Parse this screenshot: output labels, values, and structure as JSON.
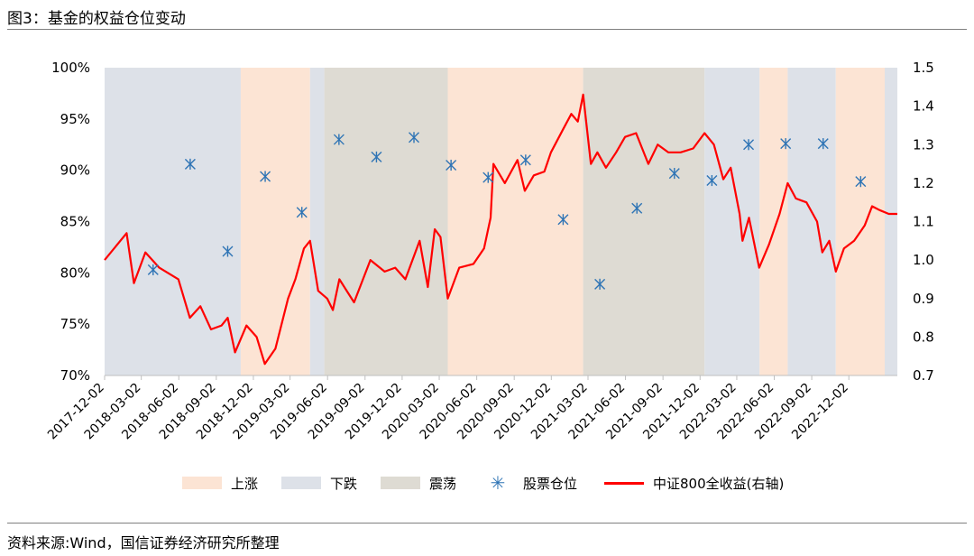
{
  "figure_title": "图3：基金的权益仓位变动",
  "source": "资料来源:Wind，国信证券经济研究所整理",
  "chart_data": {
    "type": "line",
    "x_ticks": [
      "2017-12-02",
      "2018-03-02",
      "2018-06-02",
      "2018-09-02",
      "2018-12-02",
      "2019-03-02",
      "2019-06-02",
      "2019-09-02",
      "2019-12-02",
      "2020-03-02",
      "2020-06-02",
      "2020-09-02",
      "2020-12-02",
      "2021-03-02",
      "2021-06-02",
      "2021-09-02",
      "2021-12-02",
      "2022-03-02",
      "2022-06-02",
      "2022-09-02",
      "2022-12-02"
    ],
    "x_range": [
      "2017-12-02",
      "2023-03-31"
    ],
    "y_left": {
      "ticks": [
        "70%",
        "75%",
        "80%",
        "85%",
        "90%",
        "95%",
        "100%"
      ],
      "range": [
        70,
        100
      ]
    },
    "y_right": {
      "ticks": [
        "0.7",
        "0.8",
        "0.9",
        "1.0",
        "1.1",
        "1.2",
        "1.3",
        "1.4",
        "1.5"
      ],
      "range": [
        0.7,
        1.5
      ]
    },
    "regimes": [
      {
        "type": "down",
        "start": "2017-12-02",
        "end": "2018-11-01"
      },
      {
        "type": "up",
        "start": "2018-11-01",
        "end": "2019-04-20"
      },
      {
        "type": "down",
        "start": "2019-04-20",
        "end": "2019-05-25"
      },
      {
        "type": "oscillate",
        "start": "2019-05-25",
        "end": "2020-03-23"
      },
      {
        "type": "up",
        "start": "2020-03-23",
        "end": "2021-02-18"
      },
      {
        "type": "oscillate",
        "start": "2021-02-18",
        "end": "2021-12-13"
      },
      {
        "type": "down",
        "start": "2021-12-13",
        "end": "2022-04-27"
      },
      {
        "type": "up",
        "start": "2022-04-27",
        "end": "2022-07-05"
      },
      {
        "type": "down",
        "start": "2022-07-05",
        "end": "2022-10-31"
      },
      {
        "type": "up",
        "start": "2022-10-31",
        "end": "2023-02-28"
      },
      {
        "type": "down",
        "start": "2023-02-28",
        "end": "2023-03-31"
      }
    ],
    "series": [
      {
        "name": "股票仓位",
        "axis": "left",
        "points": [
          [
            "2018-03-31",
            80.3
          ],
          [
            "2018-06-30",
            90.6
          ],
          [
            "2018-09-30",
            82.1
          ],
          [
            "2018-12-31",
            89.4
          ],
          [
            "2019-03-31",
            85.9
          ],
          [
            "2019-06-30",
            93.0
          ],
          [
            "2019-09-30",
            91.3
          ],
          [
            "2019-12-31",
            93.2
          ],
          [
            "2020-03-31",
            90.5
          ],
          [
            "2020-06-30",
            89.3
          ],
          [
            "2020-09-30",
            91.0
          ],
          [
            "2020-12-31",
            85.2
          ],
          [
            "2021-03-31",
            78.9
          ],
          [
            "2021-06-30",
            86.3
          ],
          [
            "2021-09-30",
            89.7
          ],
          [
            "2021-12-31",
            89.0
          ],
          [
            "2022-03-31",
            92.5
          ],
          [
            "2022-06-30",
            92.6
          ],
          [
            "2022-09-30",
            92.6
          ],
          [
            "2022-12-31",
            88.9
          ]
        ]
      },
      {
        "name": "中证800全收益(右轴)",
        "axis": "right",
        "points": [
          [
            "2017-12-02",
            1.0
          ],
          [
            "2018-01-25",
            1.07
          ],
          [
            "2018-02-12",
            0.94
          ],
          [
            "2018-03-12",
            1.02
          ],
          [
            "2018-04-15",
            0.98
          ],
          [
            "2018-06-01",
            0.95
          ],
          [
            "2018-06-29",
            0.85
          ],
          [
            "2018-07-25",
            0.88
          ],
          [
            "2018-08-20",
            0.82
          ],
          [
            "2018-09-15",
            0.83
          ],
          [
            "2018-09-30",
            0.85
          ],
          [
            "2018-10-18",
            0.76
          ],
          [
            "2018-11-15",
            0.83
          ],
          [
            "2018-12-10",
            0.8
          ],
          [
            "2018-12-30",
            0.73
          ],
          [
            "2019-01-25",
            0.77
          ],
          [
            "2019-02-25",
            0.9
          ],
          [
            "2019-03-15",
            0.95
          ],
          [
            "2019-04-05",
            1.03
          ],
          [
            "2019-04-20",
            1.05
          ],
          [
            "2019-05-10",
            0.92
          ],
          [
            "2019-06-01",
            0.9
          ],
          [
            "2019-06-15",
            0.87
          ],
          [
            "2019-07-01",
            0.95
          ],
          [
            "2019-08-06",
            0.89
          ],
          [
            "2019-09-15",
            1.0
          ],
          [
            "2019-10-20",
            0.97
          ],
          [
            "2019-11-15",
            0.98
          ],
          [
            "2019-12-10",
            0.95
          ],
          [
            "2020-01-14",
            1.05
          ],
          [
            "2020-02-03",
            0.93
          ],
          [
            "2020-02-20",
            1.08
          ],
          [
            "2020-03-05",
            1.06
          ],
          [
            "2020-03-23",
            0.9
          ],
          [
            "2020-04-20",
            0.98
          ],
          [
            "2020-05-25",
            0.99
          ],
          [
            "2020-06-20",
            1.03
          ],
          [
            "2020-07-06",
            1.11
          ],
          [
            "2020-07-13",
            1.25
          ],
          [
            "2020-08-10",
            1.2
          ],
          [
            "2020-09-10",
            1.26
          ],
          [
            "2020-09-28",
            1.18
          ],
          [
            "2020-10-20",
            1.22
          ],
          [
            "2020-11-15",
            1.23
          ],
          [
            "2020-12-01",
            1.28
          ],
          [
            "2020-12-31",
            1.34
          ],
          [
            "2021-01-20",
            1.38
          ],
          [
            "2021-02-05",
            1.36
          ],
          [
            "2021-02-18",
            1.43
          ],
          [
            "2021-03-09",
            1.25
          ],
          [
            "2021-03-25",
            1.28
          ],
          [
            "2021-04-15",
            1.24
          ],
          [
            "2021-05-10",
            1.28
          ],
          [
            "2021-06-01",
            1.32
          ],
          [
            "2021-06-28",
            1.33
          ],
          [
            "2021-07-28",
            1.25
          ],
          [
            "2021-08-20",
            1.3
          ],
          [
            "2021-09-15",
            1.28
          ],
          [
            "2021-10-15",
            1.28
          ],
          [
            "2021-11-15",
            1.29
          ],
          [
            "2021-12-13",
            1.33
          ],
          [
            "2022-01-05",
            1.3
          ],
          [
            "2022-01-28",
            1.21
          ],
          [
            "2022-02-15",
            1.24
          ],
          [
            "2022-03-09",
            1.12
          ],
          [
            "2022-03-16",
            1.05
          ],
          [
            "2022-04-01",
            1.11
          ],
          [
            "2022-04-26",
            0.98
          ],
          [
            "2022-05-20",
            1.04
          ],
          [
            "2022-06-15",
            1.12
          ],
          [
            "2022-07-05",
            1.2
          ],
          [
            "2022-07-25",
            1.16
          ],
          [
            "2022-08-20",
            1.15
          ],
          [
            "2022-09-15",
            1.1
          ],
          [
            "2022-09-28",
            1.02
          ],
          [
            "2022-10-15",
            1.05
          ],
          [
            "2022-10-31",
            0.97
          ],
          [
            "2022-11-20",
            1.03
          ],
          [
            "2022-12-15",
            1.05
          ],
          [
            "2023-01-10",
            1.09
          ],
          [
            "2023-01-28",
            1.14
          ],
          [
            "2023-02-15",
            1.13
          ],
          [
            "2023-03-10",
            1.12
          ],
          [
            "2023-03-31",
            1.12
          ]
        ]
      }
    ],
    "colors": {
      "up": "#fce4d4",
      "down": "#dde1e8",
      "oscillate": "#dedbd3",
      "line": "#ff0000",
      "marker": "#2e74b5"
    }
  },
  "legend": {
    "up": "上涨",
    "down": "下跌",
    "oscillate": "震荡",
    "marker": "股票仓位",
    "line": "中证800全收益(右轴)"
  }
}
